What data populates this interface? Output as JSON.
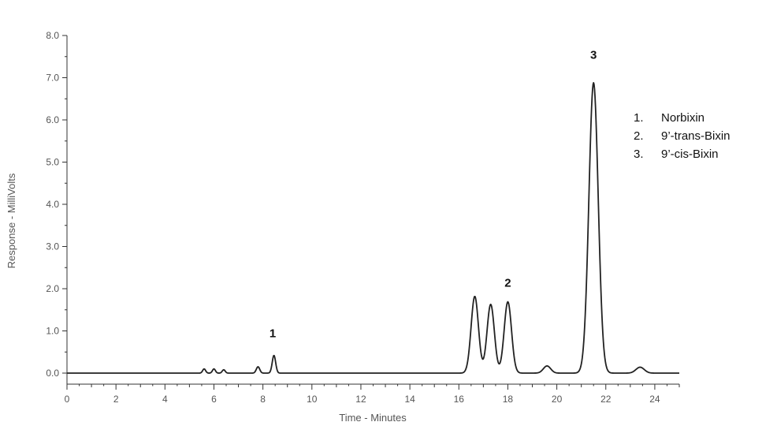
{
  "chart_data": {
    "type": "line",
    "title": "",
    "xlabel": "Time - Minutes",
    "ylabel": "Response - MilliVolts",
    "xlim": [
      0,
      25
    ],
    "ylim": [
      0,
      8
    ],
    "x_ticks": [
      0,
      2,
      4,
      6,
      8,
      10,
      12,
      14,
      16,
      18,
      20,
      22,
      24
    ],
    "x_tick_labels": [
      "0",
      "2",
      "4",
      "6",
      "8",
      "10",
      "12",
      "14",
      "16",
      "18",
      "20",
      "22",
      "24"
    ],
    "y_ticks": [
      0,
      1,
      2,
      3,
      4,
      5,
      6,
      7,
      8
    ],
    "y_tick_labels": [
      "0.0",
      "1.0",
      "2.0",
      "3.0",
      "4.0",
      "5.0",
      "6.0",
      "7.0",
      "8.0"
    ],
    "grid": false,
    "line_color": "#222222",
    "peaks": [
      {
        "rt": 5.6,
        "height": 0.1,
        "sigma": 0.06
      },
      {
        "rt": 6.0,
        "height": 0.1,
        "sigma": 0.06
      },
      {
        "rt": 6.4,
        "height": 0.08,
        "sigma": 0.06
      },
      {
        "rt": 7.8,
        "height": 0.15,
        "sigma": 0.07
      },
      {
        "rt": 8.45,
        "height": 0.42,
        "sigma": 0.07
      },
      {
        "rt": 16.65,
        "height": 1.82,
        "sigma": 0.15
      },
      {
        "rt": 17.3,
        "height": 1.63,
        "sigma": 0.15
      },
      {
        "rt": 18.0,
        "height": 1.69,
        "sigma": 0.15
      },
      {
        "rt": 19.6,
        "height": 0.17,
        "sigma": 0.15
      },
      {
        "rt": 21.5,
        "height": 6.88,
        "sigma": 0.19
      },
      {
        "rt": 23.4,
        "height": 0.14,
        "sigma": 0.17
      }
    ],
    "annotations": [
      {
        "text": "1",
        "x": 8.4,
        "y": 0.85
      },
      {
        "text": "2",
        "x": 18.0,
        "y": 2.05
      },
      {
        "text": "3",
        "x": 21.5,
        "y": 7.45
      }
    ],
    "legend": {
      "position": "top-right",
      "items": [
        {
          "num": "1.",
          "label": "Norbixin"
        },
        {
          "num": "2.",
          "label": "9’-trans-Bixin"
        },
        {
          "num": "3.",
          "label": "9’-cis-Bixin"
        }
      ]
    }
  }
}
